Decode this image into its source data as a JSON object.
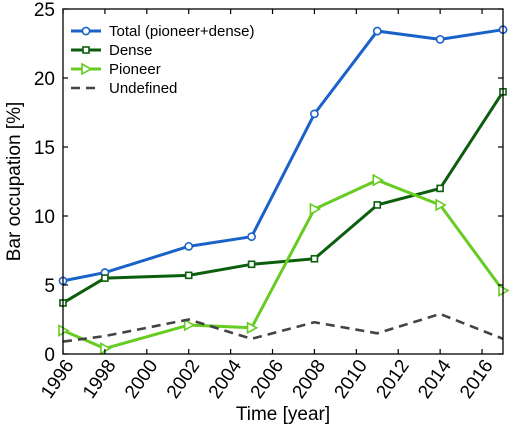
{
  "chart_data": {
    "type": "line",
    "title": "",
    "xlabel": "Time [year]",
    "ylabel": "Bar occupation [%]",
    "xlim": [
      1996,
      2017
    ],
    "ylim": [
      0,
      25
    ],
    "xticks": [
      1996,
      1998,
      2000,
      2002,
      2004,
      2006,
      2008,
      2010,
      2012,
      2014,
      2016
    ],
    "yticks": [
      0,
      5,
      10,
      15,
      20,
      25
    ],
    "grid": false,
    "legend_position": "top-left",
    "series": [
      {
        "name": "Total (pioneer+dense)",
        "color": "#1a62c8",
        "marker": "circle",
        "dash": "solid",
        "x": [
          1996,
          1998,
          2002,
          2005,
          2008,
          2011,
          2014,
          2017
        ],
        "y": [
          5.3,
          5.9,
          7.8,
          8.5,
          17.4,
          23.4,
          22.8,
          23.5
        ]
      },
      {
        "name": "Dense",
        "color": "#0b5e0b",
        "marker": "square",
        "dash": "solid",
        "x": [
          1996,
          1998,
          2002,
          2005,
          2008,
          2011,
          2014,
          2017
        ],
        "y": [
          3.7,
          5.5,
          5.7,
          6.5,
          6.9,
          10.8,
          12.0,
          19.0
        ]
      },
      {
        "name": "Pioneer",
        "color": "#66cc22",
        "marker": "triangle-right",
        "dash": "solid",
        "x": [
          1996,
          1998,
          2002,
          2005,
          2008,
          2011,
          2014,
          2017
        ],
        "y": [
          1.7,
          0.4,
          2.1,
          1.9,
          10.5,
          12.6,
          10.8,
          4.6
        ]
      },
      {
        "name": "Undefined",
        "color": "#444444",
        "marker": "none",
        "dash": "dashed",
        "x": [
          1996,
          1998,
          2002,
          2005,
          2008,
          2011,
          2014,
          2017
        ],
        "y": [
          0.9,
          1.3,
          2.5,
          1.1,
          2.3,
          1.5,
          2.9,
          1.1
        ]
      }
    ]
  }
}
